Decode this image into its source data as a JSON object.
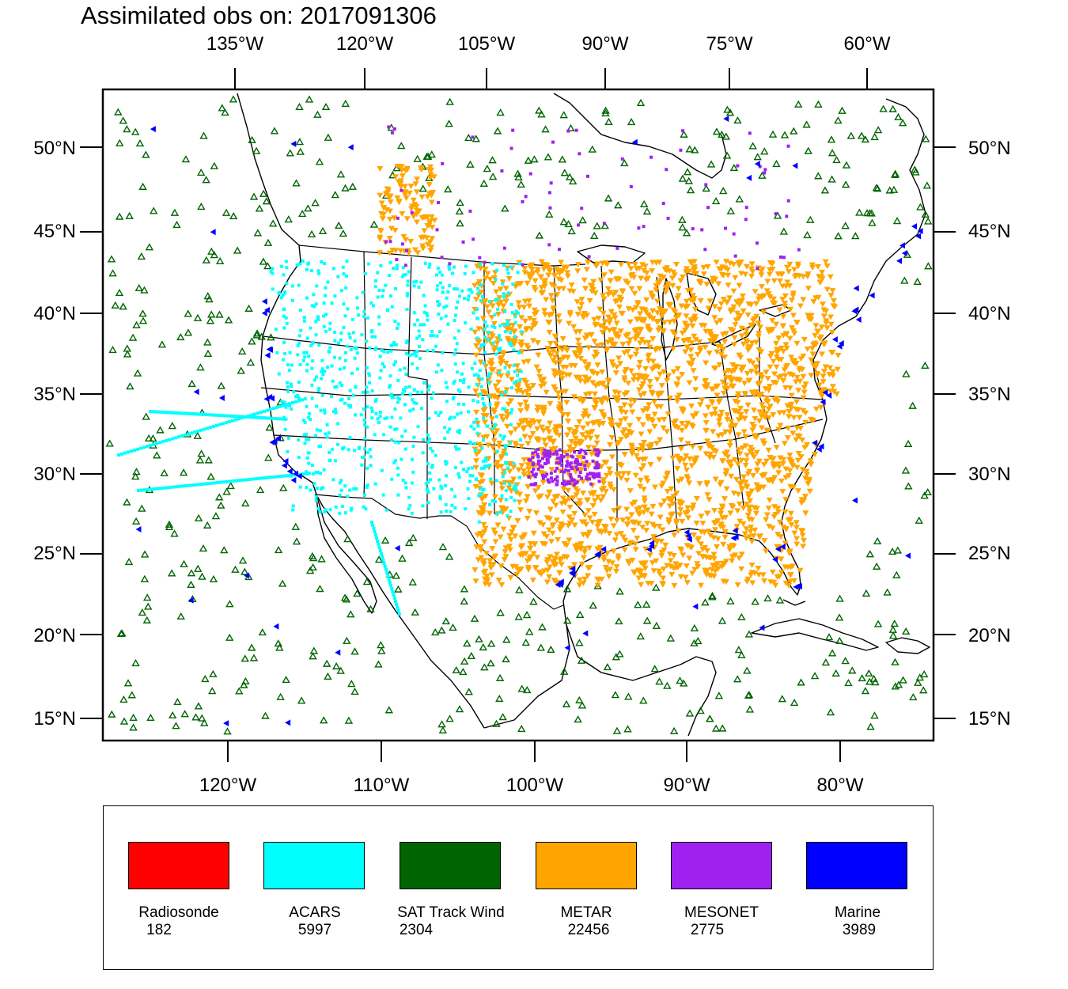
{
  "title": "Assimilated obs on: 2017091306",
  "top_lon_labels": [
    "135°W",
    "120°W",
    "105°W",
    "90°W",
    "75°W",
    "60°W"
  ],
  "bottom_lon_labels": [
    "120°W",
    "110°W",
    "100°W",
    "90°W",
    "80°W"
  ],
  "lat_labels": [
    "50°N",
    "45°N",
    "40°N",
    "35°N",
    "30°N",
    "25°N",
    "20°N",
    "15°N"
  ],
  "legend": [
    {
      "name": "Radiosonde",
      "count": "182",
      "color": "#ff0000"
    },
    {
      "name": "ACARS",
      "count": "5997",
      "color": "#00ffff"
    },
    {
      "name": "SAT Track Wind",
      "count": "2304",
      "color": "#006400"
    },
    {
      "name": "METAR",
      "count": "22456",
      "color": "#ffa500"
    },
    {
      "name": "MESONET",
      "count": "2775",
      "color": "#a020f0"
    },
    {
      "name": "Marine",
      "count": "3989",
      "color": "#0000ff"
    }
  ]
}
